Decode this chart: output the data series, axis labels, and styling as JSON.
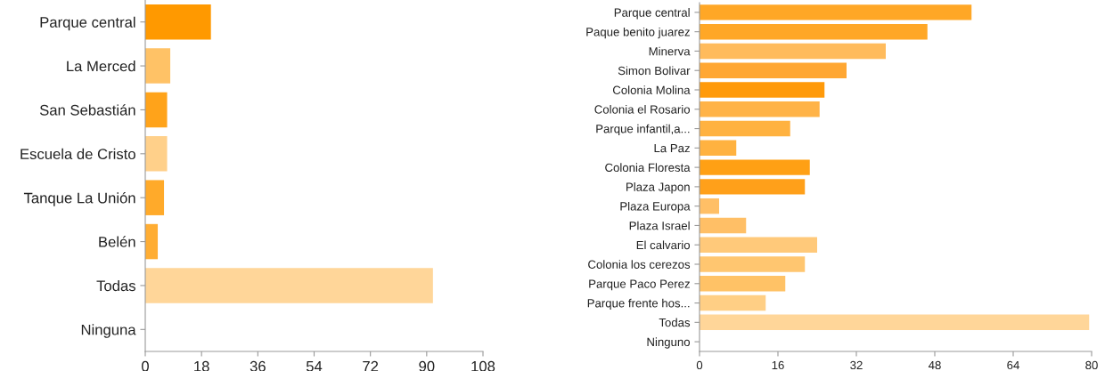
{
  "chart_data": [
    {
      "type": "bar",
      "orientation": "horizontal",
      "categories": [
        "Parque central",
        "La Merced",
        "San Sebastián",
        "Escuela de Cristo",
        "Tanque La Unión",
        "Belén",
        "Todas",
        "Ninguna"
      ],
      "values": [
        21,
        8,
        7,
        7,
        6,
        4,
        92,
        0
      ],
      "colors": [
        "#ff9900",
        "#ffc266",
        "#ffa31a",
        "#ffd08a",
        "#ffaa2a",
        "#ffad33",
        "#ffd699",
        "#ffd699"
      ],
      "xlim": [
        0,
        108
      ],
      "xticks": [
        0,
        18,
        36,
        54,
        72,
        90,
        108
      ],
      "grid": false,
      "legend": false
    },
    {
      "type": "bar",
      "orientation": "horizontal",
      "categories": [
        "Parque central",
        "Paque benito juarez",
        "Minerva",
        "Simon Bolivar",
        "Colonia Molina",
        "Colonia el Rosario",
        "Parque infantil,a...",
        "La Paz",
        "Colonia Floresta",
        "Plaza Japon",
        "Plaza Europa",
        "Plaza Israel",
        "El calvario",
        "Colonia los cerezos",
        "Parque Paco Perez",
        "Parque frente hos...",
        "Todas",
        "Ninguno"
      ],
      "values": [
        55.5,
        46.5,
        38,
        30,
        25.5,
        24.5,
        18.5,
        7.5,
        22.5,
        21.5,
        4,
        9.5,
        24,
        21.5,
        17.5,
        13.5,
        79.5,
        0
      ],
      "colors": [
        "#ffa726",
        "#ffa726",
        "#ffbb5c",
        "#ffa733",
        "#ff9a0a",
        "#ffb347",
        "#ffb240",
        "#ffb240",
        "#ffa014",
        "#ffa01a",
        "#ffbf66",
        "#ffbf66",
        "#ffc97a",
        "#ffc670",
        "#ffc266",
        "#ffcf85",
        "#ffd699",
        "#ffd699"
      ],
      "xlim": [
        0,
        80
      ],
      "xticks": [
        0,
        16,
        32,
        48,
        64,
        80
      ],
      "grid": false,
      "legend": false
    }
  ]
}
